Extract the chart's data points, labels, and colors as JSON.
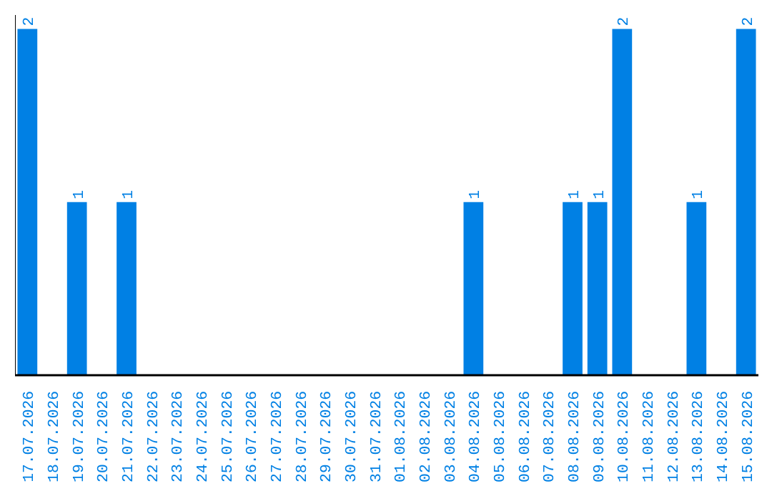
{
  "chart_data": {
    "type": "bar",
    "categories": [
      "17.07.2026",
      "18.07.2026",
      "19.07.2026",
      "20.07.2026",
      "21.07.2026",
      "22.07.2026",
      "23.07.2026",
      "24.07.2026",
      "25.07.2026",
      "26.07.2026",
      "27.07.2026",
      "28.07.2026",
      "29.07.2026",
      "30.07.2026",
      "31.07.2026",
      "01.08.2026",
      "02.08.2026",
      "03.08.2026",
      "04.08.2026",
      "05.08.2026",
      "06.08.2026",
      "07.08.2026",
      "08.08.2026",
      "09.08.2026",
      "10.08.2026",
      "11.08.2026",
      "12.08.2026",
      "13.08.2026",
      "14.08.2026",
      "15.08.2026"
    ],
    "values": [
      2,
      0,
      1,
      0,
      1,
      0,
      0,
      0,
      0,
      0,
      0,
      0,
      0,
      0,
      0,
      0,
      0,
      0,
      1,
      0,
      0,
      0,
      1,
      1,
      2,
      0,
      0,
      1,
      0,
      2
    ],
    "value_labels": [
      "2",
      null,
      "1",
      null,
      "1",
      null,
      null,
      null,
      null,
      null,
      null,
      null,
      null,
      null,
      null,
      null,
      null,
      null,
      "1",
      null,
      null,
      null,
      "1",
      "1",
      "2",
      null,
      null,
      "1",
      null,
      "2"
    ],
    "color": "#0080e4",
    "grid": false
  }
}
